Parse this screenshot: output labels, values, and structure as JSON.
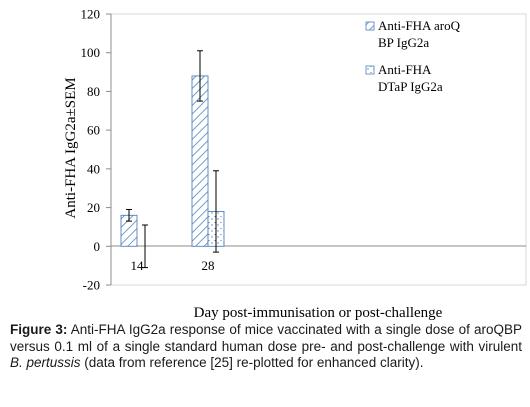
{
  "chart_data": {
    "type": "bar",
    "categories": [
      "14",
      "28"
    ],
    "series": [
      {
        "name": "Anti-FHA aroQ BP IgG2a",
        "values": [
          16,
          88
        ],
        "errors": [
          3,
          13
        ],
        "color": "#4f81bd",
        "pattern": "diagonal-hatch"
      },
      {
        "name": "Anti-FHA DTaP IgG2a",
        "values": [
          null,
          18
        ],
        "errors": [
          11,
          21
        ],
        "color": "#4f81bd",
        "pattern": "dotted"
      }
    ],
    "legend_lines": [
      [
        "Anti-FHA aroQ",
        "BP IgG2a"
      ],
      [
        "Anti-FHA",
        "DTaP IgG2a"
      ]
    ],
    "ylim": [
      -20,
      120
    ],
    "yticks": [
      "120",
      "100",
      "80",
      "60",
      "40",
      "20",
      "0",
      "-20"
    ],
    "ylabel": "Anti-FHA IgG2a±SEM",
    "xlabel": "Day post-immunisation or post-challenge",
    "legend_position": "top-right",
    "grid": false
  },
  "caption": {
    "label": "Figure 3:",
    "text_before": " Anti-FHA IgG2a response of mice vaccinated with a single dose of aroQBP versus 0.1 ml of a single standard human dose pre- and post-challenge with virulent ",
    "italic": "B. pertussis",
    "text_after": " (data from reference [25] re-plotted for enhanced clarity)."
  }
}
